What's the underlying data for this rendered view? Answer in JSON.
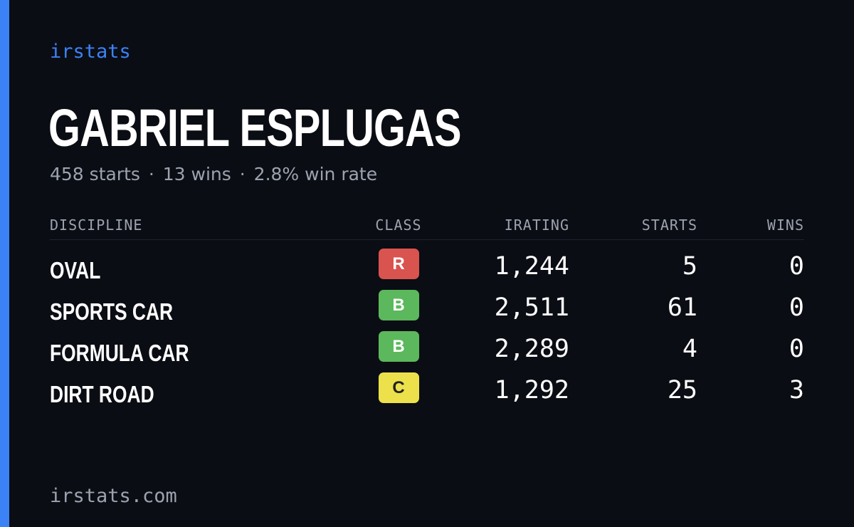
{
  "brand": "irstats",
  "driver": {
    "name": "GABRIEL ESPLUGAS",
    "starts_text": "458 starts",
    "wins_text": "13 wins",
    "win_rate_text": "2.8% win rate",
    "separator": "·"
  },
  "table": {
    "headers": {
      "discipline": "DISCIPLINE",
      "class": "CLASS",
      "irating": "IRATING",
      "starts": "STARTS",
      "wins": "WINS"
    },
    "rows": [
      {
        "discipline": "OVAL",
        "class": "R",
        "class_color": "#d9534f",
        "class_text_color": "#ffffff",
        "irating": "1,244",
        "starts": "5",
        "wins": "0"
      },
      {
        "discipline": "SPORTS CAR",
        "class": "B",
        "class_color": "#5cb85c",
        "class_text_color": "#ffffff",
        "irating": "2,511",
        "starts": "61",
        "wins": "0"
      },
      {
        "discipline": "FORMULA CAR",
        "class": "B",
        "class_color": "#5cb85c",
        "class_text_color": "#ffffff",
        "irating": "2,289",
        "starts": "4",
        "wins": "0"
      },
      {
        "discipline": "DIRT ROAD",
        "class": "C",
        "class_color": "#ece14b",
        "class_text_color": "#222222",
        "irating": "1,292",
        "starts": "25",
        "wins": "3"
      }
    ]
  },
  "footer": "irstats.com",
  "colors": {
    "accent": "#3b82f6",
    "background": "#0b0d14",
    "muted_text": "#9ca3af"
  }
}
